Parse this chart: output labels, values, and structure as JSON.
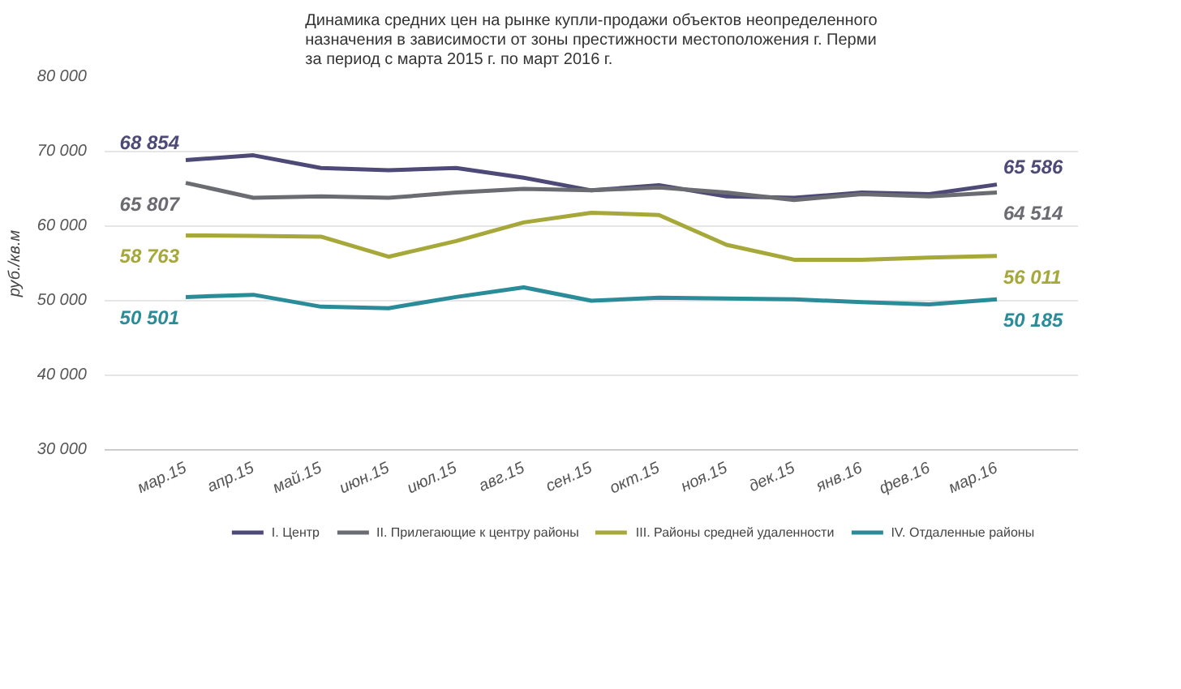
{
  "chart_data": {
    "type": "line",
    "title": "Динамика средних цен на рынке купли-продажи объектов неопределенного\nназначения в зависимости от зоны престижности местоположения г. Перми\nза период с марта 2015 г. по март 2016 г.",
    "ylabel": "руб./кв.м",
    "categories": [
      "мар.15",
      "апр.15",
      "май.15",
      "июн.15",
      "июл.15",
      "авг.15",
      "сен.15",
      "окт.15",
      "ноя.15",
      "дек.15",
      "янв.16",
      "фев.16",
      "мар.16"
    ],
    "series": [
      {
        "name": "I. Центр",
        "color": "#4e4a78",
        "values": [
          68854,
          69500,
          67800,
          67500,
          67800,
          66500,
          64800,
          65500,
          64000,
          63800,
          64500,
          64300,
          65586
        ],
        "value_labels": [
          "68 854",
          null,
          null,
          null,
          null,
          null,
          null,
          null,
          null,
          null,
          null,
          null,
          "65 586"
        ]
      },
      {
        "name": "II. Прилегающие к центру районы",
        "color": "#6b6b72",
        "values": [
          65807,
          63800,
          64000,
          63800,
          64500,
          65000,
          64800,
          65200,
          64500,
          63500,
          64300,
          64000,
          64514
        ],
        "value_labels": [
          "65 807",
          null,
          null,
          null,
          null,
          null,
          null,
          null,
          null,
          null,
          null,
          null,
          "64 514"
        ]
      },
      {
        "name": "III. Районы средней удаленности",
        "color": "#a6a83a",
        "values": [
          58763,
          58700,
          58600,
          55900,
          58000,
          60500,
          61800,
          61500,
          57500,
          55500,
          55500,
          55800,
          56011
        ],
        "value_labels": [
          "58 763",
          null,
          null,
          null,
          null,
          null,
          null,
          null,
          null,
          null,
          null,
          null,
          "56 011"
        ]
      },
      {
        "name": "IV. Отдаленные районы",
        "color": "#2a8c98",
        "values": [
          50501,
          50800,
          49200,
          49000,
          50500,
          51800,
          50000,
          50400,
          50300,
          50200,
          49800,
          49500,
          50185
        ],
        "value_labels": [
          "50 501",
          null,
          null,
          null,
          null,
          null,
          null,
          null,
          null,
          null,
          null,
          null,
          "50 185"
        ]
      }
    ],
    "ylim": [
      30000,
      80000
    ],
    "yticks": [
      {
        "value": 30000,
        "label": "30 000"
      },
      {
        "value": 40000,
        "label": "40 000"
      },
      {
        "value": 50000,
        "label": "50 000"
      },
      {
        "value": 60000,
        "label": "60 000"
      },
      {
        "value": 70000,
        "label": "70 000"
      },
      {
        "value": 80000,
        "label": "80 000"
      }
    ],
    "grid": "y",
    "legend": "bottom"
  }
}
